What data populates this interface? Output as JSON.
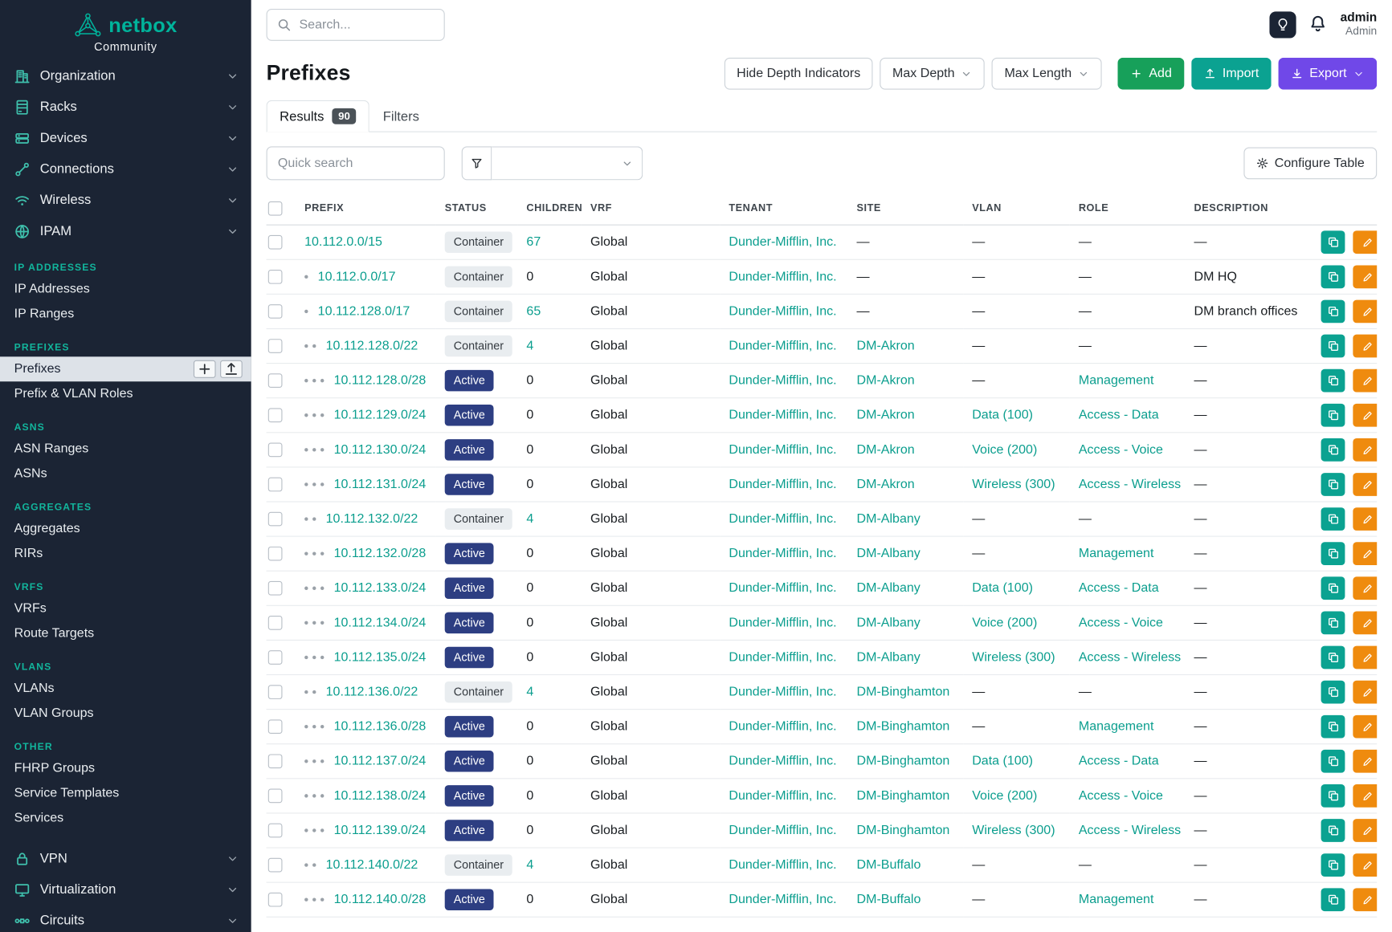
{
  "brand": {
    "name": "netbox",
    "subtitle": "Community"
  },
  "topbar": {
    "search_placeholder": "Search...",
    "user_name": "admin",
    "user_role": "Admin"
  },
  "sidebar": {
    "top_nav": [
      {
        "label": "Organization",
        "icon": "building-icon"
      },
      {
        "label": "Racks",
        "icon": "rack-icon"
      },
      {
        "label": "Devices",
        "icon": "device-icon"
      },
      {
        "label": "Connections",
        "icon": "cable-icon"
      },
      {
        "label": "Wireless",
        "icon": "wifi-icon"
      },
      {
        "label": "IPAM",
        "icon": "ipam-icon"
      }
    ],
    "ipam_sections": [
      {
        "header": "IP Addresses",
        "items": [
          {
            "label": "IP Addresses"
          },
          {
            "label": "IP Ranges"
          }
        ]
      },
      {
        "header": "Prefixes",
        "items": [
          {
            "label": "Prefixes",
            "active": true
          },
          {
            "label": "Prefix & VLAN Roles"
          }
        ]
      },
      {
        "header": "ASNs",
        "items": [
          {
            "label": "ASN Ranges"
          },
          {
            "label": "ASNs"
          }
        ]
      },
      {
        "header": "Aggregates",
        "items": [
          {
            "label": "Aggregates"
          },
          {
            "label": "RIRs"
          }
        ]
      },
      {
        "header": "VRFs",
        "items": [
          {
            "label": "VRFs"
          },
          {
            "label": "Route Targets"
          }
        ]
      },
      {
        "header": "VLANs",
        "items": [
          {
            "label": "VLANs"
          },
          {
            "label": "VLAN Groups"
          }
        ]
      },
      {
        "header": "Other",
        "items": [
          {
            "label": "FHRP Groups"
          },
          {
            "label": "Service Templates"
          },
          {
            "label": "Services"
          }
        ]
      }
    ],
    "bottom_nav": [
      {
        "label": "VPN",
        "icon": "lock-icon"
      },
      {
        "label": "Virtualization",
        "icon": "monitor-icon"
      },
      {
        "label": "Circuits",
        "icon": "circuit-icon"
      }
    ]
  },
  "page": {
    "title": "Prefixes",
    "toolbar": {
      "hide_depth": "Hide Depth Indicators",
      "max_depth": "Max Depth",
      "max_length": "Max Length",
      "add": "Add",
      "import": "Import",
      "export": "Export"
    },
    "tabs": [
      {
        "label": "Results",
        "badge": "90"
      },
      {
        "label": "Filters"
      }
    ],
    "quick_search_placeholder": "Quick search",
    "configure_table": "Configure Table"
  },
  "colors": {
    "sidebar_bg": "#1b2434",
    "teal_accent": "#0ba291",
    "link_teal": "#0b9e8e",
    "add_green": "#17a05a",
    "export_purple": "#7048e8",
    "edit_orange": "#ef8b0e",
    "active_badge": "#2d3e82"
  },
  "table": {
    "columns": [
      "Prefix",
      "Status",
      "Children",
      "VRF",
      "Tenant",
      "Site",
      "VLAN",
      "Role",
      "Description"
    ],
    "rows": [
      {
        "depth": 0,
        "prefix": "10.112.0.0/15",
        "status": "Container",
        "children": "67",
        "vrf": "Global",
        "tenant": "Dunder-Mifflin, Inc.",
        "site": "—",
        "vlan": "—",
        "role": "—",
        "description": "—"
      },
      {
        "depth": 1,
        "prefix": "10.112.0.0/17",
        "status": "Container",
        "children": "0",
        "vrf": "Global",
        "tenant": "Dunder-Mifflin, Inc.",
        "site": "—",
        "vlan": "—",
        "role": "—",
        "description": "DM HQ"
      },
      {
        "depth": 1,
        "prefix": "10.112.128.0/17",
        "status": "Container",
        "children": "65",
        "vrf": "Global",
        "tenant": "Dunder-Mifflin, Inc.",
        "site": "—",
        "vlan": "—",
        "role": "—",
        "description": "DM branch offices"
      },
      {
        "depth": 2,
        "prefix": "10.112.128.0/22",
        "status": "Container",
        "children": "4",
        "vrf": "Global",
        "tenant": "Dunder-Mifflin, Inc.",
        "site": "DM-Akron",
        "vlan": "—",
        "role": "—",
        "description": "—"
      },
      {
        "depth": 3,
        "prefix": "10.112.128.0/28",
        "status": "Active",
        "children": "0",
        "vrf": "Global",
        "tenant": "Dunder-Mifflin, Inc.",
        "site": "DM-Akron",
        "vlan": "—",
        "role": "Management",
        "description": "—"
      },
      {
        "depth": 3,
        "prefix": "10.112.129.0/24",
        "status": "Active",
        "children": "0",
        "vrf": "Global",
        "tenant": "Dunder-Mifflin, Inc.",
        "site": "DM-Akron",
        "vlan": "Data (100)",
        "role": "Access - Data",
        "description": "—"
      },
      {
        "depth": 3,
        "prefix": "10.112.130.0/24",
        "status": "Active",
        "children": "0",
        "vrf": "Global",
        "tenant": "Dunder-Mifflin, Inc.",
        "site": "DM-Akron",
        "vlan": "Voice (200)",
        "role": "Access - Voice",
        "description": "—"
      },
      {
        "depth": 3,
        "prefix": "10.112.131.0/24",
        "status": "Active",
        "children": "0",
        "vrf": "Global",
        "tenant": "Dunder-Mifflin, Inc.",
        "site": "DM-Akron",
        "vlan": "Wireless (300)",
        "role": "Access - Wireless",
        "description": "—"
      },
      {
        "depth": 2,
        "prefix": "10.112.132.0/22",
        "status": "Container",
        "children": "4",
        "vrf": "Global",
        "tenant": "Dunder-Mifflin, Inc.",
        "site": "DM-Albany",
        "vlan": "—",
        "role": "—",
        "description": "—"
      },
      {
        "depth": 3,
        "prefix": "10.112.132.0/28",
        "status": "Active",
        "children": "0",
        "vrf": "Global",
        "tenant": "Dunder-Mifflin, Inc.",
        "site": "DM-Albany",
        "vlan": "—",
        "role": "Management",
        "description": "—"
      },
      {
        "depth": 3,
        "prefix": "10.112.133.0/24",
        "status": "Active",
        "children": "0",
        "vrf": "Global",
        "tenant": "Dunder-Mifflin, Inc.",
        "site": "DM-Albany",
        "vlan": "Data (100)",
        "role": "Access - Data",
        "description": "—"
      },
      {
        "depth": 3,
        "prefix": "10.112.134.0/24",
        "status": "Active",
        "children": "0",
        "vrf": "Global",
        "tenant": "Dunder-Mifflin, Inc.",
        "site": "DM-Albany",
        "vlan": "Voice (200)",
        "role": "Access - Voice",
        "description": "—"
      },
      {
        "depth": 3,
        "prefix": "10.112.135.0/24",
        "status": "Active",
        "children": "0",
        "vrf": "Global",
        "tenant": "Dunder-Mifflin, Inc.",
        "site": "DM-Albany",
        "vlan": "Wireless (300)",
        "role": "Access - Wireless",
        "description": "—"
      },
      {
        "depth": 2,
        "prefix": "10.112.136.0/22",
        "status": "Container",
        "children": "4",
        "vrf": "Global",
        "tenant": "Dunder-Mifflin, Inc.",
        "site": "DM-Binghamton",
        "vlan": "—",
        "role": "—",
        "description": "—"
      },
      {
        "depth": 3,
        "prefix": "10.112.136.0/28",
        "status": "Active",
        "children": "0",
        "vrf": "Global",
        "tenant": "Dunder-Mifflin, Inc.",
        "site": "DM-Binghamton",
        "vlan": "—",
        "role": "Management",
        "description": "—"
      },
      {
        "depth": 3,
        "prefix": "10.112.137.0/24",
        "status": "Active",
        "children": "0",
        "vrf": "Global",
        "tenant": "Dunder-Mifflin, Inc.",
        "site": "DM-Binghamton",
        "vlan": "Data (100)",
        "role": "Access - Data",
        "description": "—"
      },
      {
        "depth": 3,
        "prefix": "10.112.138.0/24",
        "status": "Active",
        "children": "0",
        "vrf": "Global",
        "tenant": "Dunder-Mifflin, Inc.",
        "site": "DM-Binghamton",
        "vlan": "Voice (200)",
        "role": "Access - Voice",
        "description": "—"
      },
      {
        "depth": 3,
        "prefix": "10.112.139.0/24",
        "status": "Active",
        "children": "0",
        "vrf": "Global",
        "tenant": "Dunder-Mifflin, Inc.",
        "site": "DM-Binghamton",
        "vlan": "Wireless (300)",
        "role": "Access - Wireless",
        "description": "—"
      },
      {
        "depth": 2,
        "prefix": "10.112.140.0/22",
        "status": "Container",
        "children": "4",
        "vrf": "Global",
        "tenant": "Dunder-Mifflin, Inc.",
        "site": "DM-Buffalo",
        "vlan": "—",
        "role": "—",
        "description": "—"
      },
      {
        "depth": 3,
        "prefix": "10.112.140.0/28",
        "status": "Active",
        "children": "0",
        "vrf": "Global",
        "tenant": "Dunder-Mifflin, Inc.",
        "site": "DM-Buffalo",
        "vlan": "—",
        "role": "Management",
        "description": "—"
      }
    ]
  }
}
